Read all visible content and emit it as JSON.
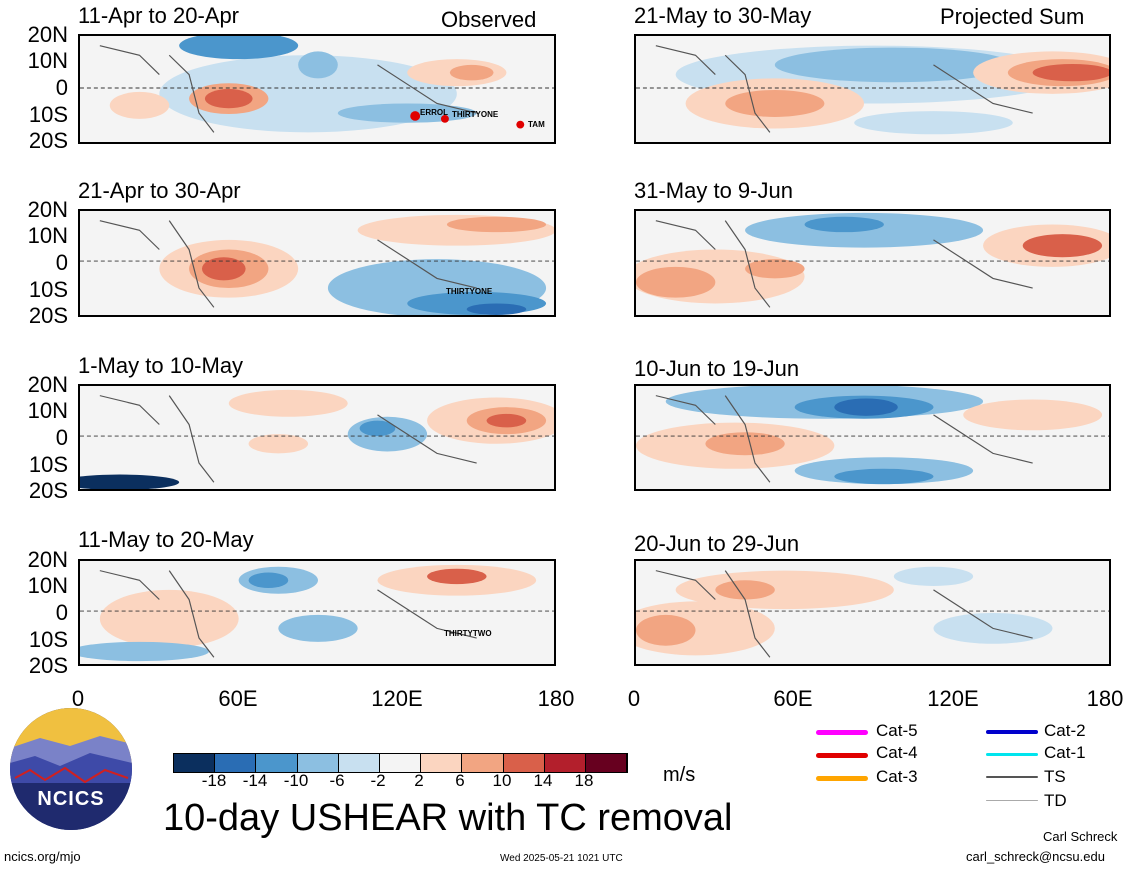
{
  "header": {
    "observed": "Observed",
    "projected": "Projected Sum"
  },
  "panels": [
    {
      "title": "11-Apr to 20-Apr",
      "tc_labels": [
        "ERROL",
        "THIRTYONE",
        "TAM"
      ]
    },
    {
      "title": "21-Apr to 30-Apr",
      "tc_labels": [
        "THIRTYONE"
      ]
    },
    {
      "title": "1-May to 10-May",
      "tc_labels": []
    },
    {
      "title": "11-May to 20-May",
      "tc_labels": [
        "THIRTYTWO"
      ]
    },
    {
      "title": "21-May to 30-May",
      "tc_labels": []
    },
    {
      "title": "31-May to 9-Jun",
      "tc_labels": []
    },
    {
      "title": "10-Jun to 19-Jun",
      "tc_labels": []
    },
    {
      "title": "20-Jun to 29-Jun",
      "tc_labels": []
    }
  ],
  "lat_labels": [
    "20N",
    "10N",
    "0",
    "10S",
    "20S"
  ],
  "lon_labels": [
    "0",
    "60E",
    "120E",
    "180"
  ],
  "colorbar": {
    "labels": [
      "-18",
      "-14",
      "-10",
      "-6",
      "-2",
      "2",
      "6",
      "10",
      "14",
      "18"
    ],
    "colors": [
      "#0b2f5e",
      "#2a6db4",
      "#4b96cc",
      "#8cbfe1",
      "#c8e0f0",
      "#f4f4f4",
      "#fbd5c0",
      "#f2a582",
      "#d9604a",
      "#b31f2c",
      "#67001f"
    ],
    "units": "m/s"
  },
  "legend": [
    {
      "label": "Cat-5",
      "color": "#ff00ff"
    },
    {
      "label": "Cat-4",
      "color": "#e00000"
    },
    {
      "label": "Cat-3",
      "color": "#ffa500"
    },
    {
      "label": "Cat-2",
      "color": "#0000cc"
    },
    {
      "label": "Cat-1",
      "color": "#00e5ee"
    },
    {
      "label": "TS",
      "color": "#555555"
    },
    {
      "label": "TD",
      "color": "#aaaaaa"
    }
  ],
  "logo": {
    "text": "NCICS"
  },
  "title": "10-day USHEAR with TC removal",
  "footer": {
    "url": "ncics.org/mjo",
    "timestamp": "Wed 2025-05-21 1021 UTC",
    "author": "Carl Schreck",
    "email": "carl_schreck@ncsu.edu"
  }
}
